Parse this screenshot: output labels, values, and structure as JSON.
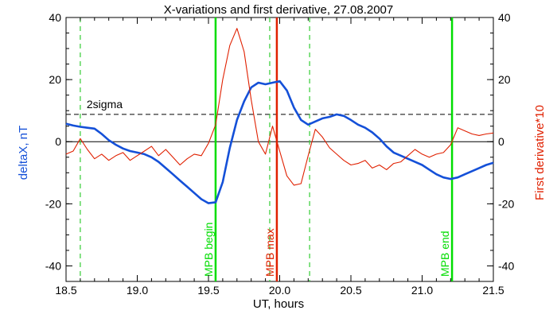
{
  "chart_data": {
    "type": "line",
    "title": "X-variations and first derivative, 27.08.2007",
    "xlabel": "UT, hours",
    "ylabel_left": "deltaX, nT",
    "ylabel_right": "First derivative*10",
    "xlim": [
      18.5,
      21.5
    ],
    "ylim": [
      -45,
      40
    ],
    "xticks": [
      18.5,
      19.0,
      19.5,
      20.0,
      20.5,
      21.0,
      21.5
    ],
    "xtick_labels": [
      "18.5",
      "19.0",
      "19.5",
      "20.0",
      "20.5",
      "21.0",
      "21.5"
    ],
    "yticks": [
      -40,
      -20,
      0,
      20,
      40
    ],
    "ytick_labels": [
      "-40",
      "-20",
      "0",
      "20",
      "40"
    ],
    "colors": {
      "deltaX": "#1450d8",
      "derivative": "#e02000",
      "marker_green": "#00dd00",
      "marker_red": "#e02000",
      "dashed_green": "#33cc33"
    },
    "series": [
      {
        "name": "deltaX, nT",
        "color": "#1450d8",
        "x": [
          18.5,
          18.55,
          18.6,
          18.65,
          18.7,
          18.75,
          18.8,
          18.85,
          18.9,
          18.95,
          19.0,
          19.05,
          19.1,
          19.15,
          19.2,
          19.25,
          19.3,
          19.35,
          19.4,
          19.45,
          19.5,
          19.55,
          19.6,
          19.65,
          19.7,
          19.75,
          19.8,
          19.85,
          19.9,
          19.95,
          20.0,
          20.05,
          20.1,
          20.15,
          20.2,
          20.25,
          20.3,
          20.35,
          20.4,
          20.45,
          20.5,
          20.55,
          20.6,
          20.65,
          20.7,
          20.75,
          20.8,
          20.85,
          20.9,
          20.95,
          21.0,
          21.05,
          21.1,
          21.15,
          21.2,
          21.25,
          21.3,
          21.35,
          21.4,
          21.45,
          21.5
        ],
        "y": [
          5.8,
          5.2,
          4.8,
          4.5,
          4.2,
          2.5,
          0.5,
          -1.0,
          -2.2,
          -3.0,
          -3.5,
          -4.0,
          -5.0,
          -6.5,
          -8.5,
          -10.5,
          -12.5,
          -14.5,
          -16.5,
          -18.5,
          -19.8,
          -19.5,
          -13.0,
          -2.0,
          7.0,
          13.0,
          17.5,
          19.0,
          18.5,
          19.0,
          19.5,
          16.5,
          11.0,
          7.0,
          5.5,
          6.5,
          7.5,
          8.0,
          8.8,
          8.3,
          7.0,
          5.5,
          4.5,
          3.0,
          1.0,
          -1.5,
          -3.5,
          -4.5,
          -5.5,
          -6.5,
          -7.5,
          -9.0,
          -10.5,
          -11.5,
          -12.0,
          -11.5,
          -10.5,
          -9.5,
          -8.5,
          -7.5,
          -6.8
        ]
      },
      {
        "name": "First derivative*10",
        "color": "#e02000",
        "x": [
          18.5,
          18.55,
          18.6,
          18.65,
          18.7,
          18.75,
          18.8,
          18.85,
          18.9,
          18.95,
          19.0,
          19.05,
          19.1,
          19.15,
          19.2,
          19.25,
          19.3,
          19.35,
          19.4,
          19.45,
          19.5,
          19.55,
          19.6,
          19.65,
          19.7,
          19.75,
          19.8,
          19.85,
          19.9,
          19.95,
          20.0,
          20.05,
          20.1,
          20.15,
          20.2,
          20.25,
          20.3,
          20.35,
          20.4,
          20.45,
          20.5,
          20.55,
          20.6,
          20.65,
          20.7,
          20.75,
          20.8,
          20.85,
          20.9,
          20.95,
          21.0,
          21.05,
          21.1,
          21.15,
          21.2,
          21.25,
          21.3,
          21.35,
          21.4,
          21.45,
          21.5
        ],
        "y": [
          -4.0,
          -3.0,
          1.0,
          -2.5,
          -5.5,
          -4.0,
          -6.0,
          -4.5,
          -3.5,
          -6.0,
          -4.5,
          -3.0,
          -1.5,
          -4.5,
          -2.5,
          -5.0,
          -7.5,
          -5.5,
          -4.0,
          -4.5,
          -0.5,
          5.5,
          20.0,
          31.0,
          36.5,
          29.0,
          13.5,
          0.0,
          -4.0,
          5.0,
          -3.0,
          -11.0,
          -14.0,
          -13.5,
          -4.5,
          4.0,
          1.5,
          -2.0,
          -4.0,
          -6.0,
          -7.5,
          -7.0,
          -6.0,
          -8.5,
          -7.5,
          -9.0,
          -7.0,
          -6.5,
          -4.5,
          -2.5,
          -4.0,
          -5.0,
          -4.0,
          -3.5,
          -1.0,
          4.5,
          3.5,
          2.5,
          2.0,
          2.5,
          2.8
        ]
      }
    ],
    "horizontal_lines": [
      {
        "label": "2sigma",
        "y": 8.8,
        "style": "dashed"
      },
      {
        "label": "",
        "y": 0,
        "style": "solid"
      }
    ],
    "vertical_markers": [
      {
        "x": 18.6,
        "style": "dashed",
        "color": "#33cc33",
        "label": ""
      },
      {
        "x": 19.55,
        "style": "solid",
        "color": "#00dd00",
        "label": "MPB begin"
      },
      {
        "x": 19.93,
        "style": "dashed",
        "color": "#33cc33",
        "label": ""
      },
      {
        "x": 19.98,
        "style": "solid",
        "color": "#e02000",
        "label": "MPB max"
      },
      {
        "x": 20.21,
        "style": "dashed",
        "color": "#33cc33",
        "label": ""
      },
      {
        "x": 21.21,
        "style": "solid",
        "color": "#00dd00",
        "label": "MPB end"
      }
    ],
    "grid": false,
    "legend": "none"
  }
}
